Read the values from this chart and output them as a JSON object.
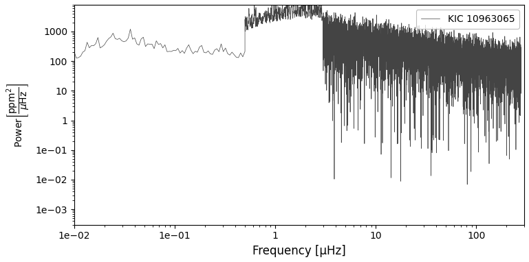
{
  "xlabel": "Frequency [μHz]",
  "ylabel_text": "$\\mathrm{Power}\\left[\\dfrac{\\mathrm{ppm}^2}{\\mu\\mathrm{Hz}}\\right]$",
  "legend_label": "KIC 10963065",
  "xlim": [
    0.01,
    300
  ],
  "ylim": [
    0.0003,
    8000
  ],
  "line_color": "#444444",
  "background_color": "#ffffff",
  "figsize": [
    7.69,
    3.82
  ],
  "dpi": 100
}
